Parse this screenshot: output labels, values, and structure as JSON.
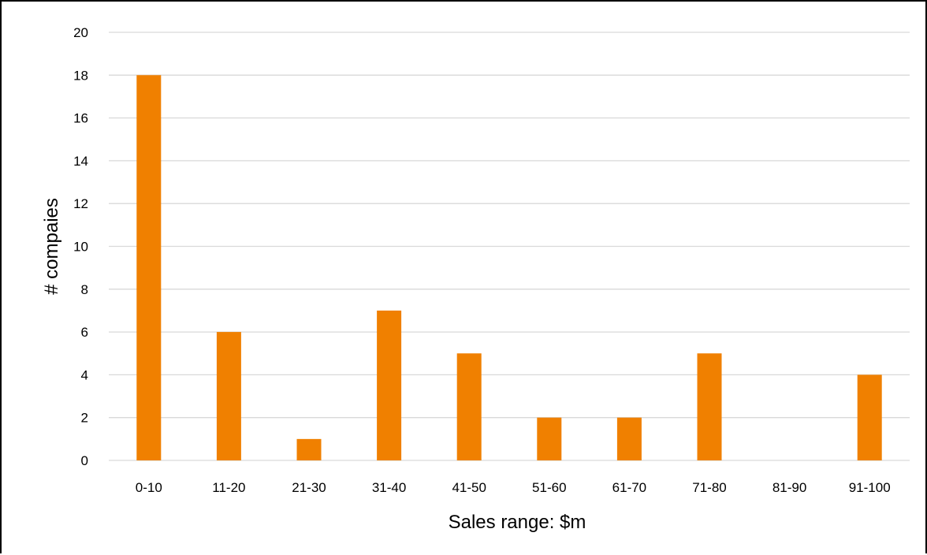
{
  "chart_data": {
    "type": "bar",
    "title": "",
    "xlabel": "Sales range: $m",
    "ylabel": "# compaies",
    "categories": [
      "0-10",
      "11-20",
      "21-30",
      "31-40",
      "41-50",
      "51-60",
      "61-70",
      "71-80",
      "81-90",
      "91-100"
    ],
    "values": [
      18,
      6,
      1,
      7,
      5,
      2,
      2,
      5,
      0,
      4
    ],
    "ylim": [
      0,
      20
    ],
    "yticks": [
      "0",
      "2",
      "4",
      "6",
      "8",
      "10",
      "12",
      "14",
      "16",
      "18",
      "20"
    ],
    "grid": true,
    "legend": "none",
    "bar_color": "#F08000",
    "grid_color": "#D9D9D9"
  }
}
